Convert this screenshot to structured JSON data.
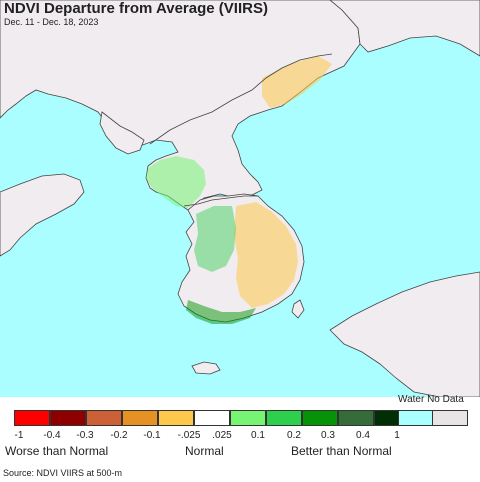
{
  "title": "NDVI Departure from Average (VIIRS)",
  "subtitle": "Dec. 11 - Dec. 18, 2023",
  "colors": {
    "water": "#aafeff",
    "land": "#f0ecef",
    "border": "#444444",
    "legend_swatches": [
      "#fe0000",
      "#8e0000",
      "#cc6138",
      "#e69123",
      "#fdc84b",
      "#ffffff",
      "#77f474",
      "#2dcf4d",
      "#069308",
      "#366b3a",
      "#012e04",
      "#aaffff",
      "#e9e4e6"
    ]
  },
  "legend": {
    "water_nodata_label": "Water No Data",
    "ticks": [
      "-1",
      "-0.4",
      "-0.3",
      "-0.2",
      "-0.1",
      "-.025",
      ".025",
      "0.1",
      "0.2",
      "0.3",
      "0.4",
      "1"
    ],
    "categories": {
      "worse": "Worse than Normal",
      "normal": "Normal",
      "better": "Better than Normal"
    }
  },
  "source": "Source: NDVI VIIRS at 500-m"
}
